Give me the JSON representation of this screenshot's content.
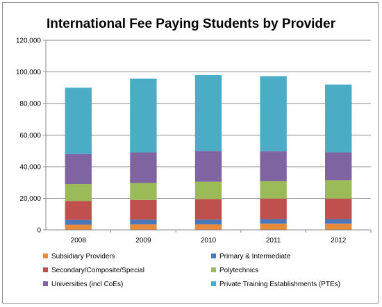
{
  "chart_data": {
    "type": "bar",
    "stacked": true,
    "title": "International Fee Paying Students by Provider",
    "xlabel": "",
    "ylabel": "",
    "categories": [
      "2008",
      "2009",
      "2010",
      "2011",
      "2012"
    ],
    "ylim": [
      0,
      120000
    ],
    "yticks": [
      0,
      20000,
      40000,
      60000,
      80000,
      100000,
      120000
    ],
    "ytick_labels": [
      "0",
      "20,000",
      "40,000",
      "60,000",
      "80,000",
      "100,000",
      "120,000"
    ],
    "grid": true,
    "legend_position": "bottom",
    "series": [
      {
        "name": "Subsidiary Providers",
        "color": "#e88b3a",
        "values": [
          3300,
          3500,
          3500,
          4000,
          4000
        ]
      },
      {
        "name": "Primary & Intermediate",
        "color": "#4a78bd",
        "values": [
          3000,
          3000,
          3000,
          2800,
          2800
        ]
      },
      {
        "name": "Secondary/Composite/Special",
        "color": "#c0504d",
        "values": [
          12000,
          12500,
          13000,
          13000,
          13000
        ]
      },
      {
        "name": "Polytechnics",
        "color": "#9bbb59",
        "values": [
          10700,
          10700,
          11000,
          11000,
          11700
        ]
      },
      {
        "name": "Universities (incl CoEs)",
        "color": "#8064a2",
        "values": [
          19000,
          19300,
          19500,
          19000,
          17500
        ]
      },
      {
        "name": "Private Training Establishments (PTEs)",
        "color": "#4bacc6",
        "values": [
          42000,
          46700,
          48000,
          47500,
          43000
        ]
      }
    ]
  }
}
